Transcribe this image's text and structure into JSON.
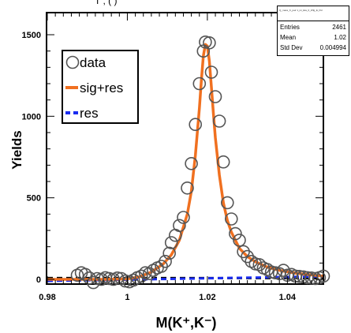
{
  "top_cut_text": "T                ,                (   )",
  "stats": {
    "title": "Q_mass_K_pair 1_ini_Eta_0_Wfg_E_Pol",
    "rows": [
      {
        "label": "Entries",
        "value": "2461"
      },
      {
        "label": "Mean",
        "value": "1.02"
      },
      {
        "label": "Std Dev",
        "value": "0.004994"
      }
    ]
  },
  "colors": {
    "data": "#555555",
    "fit": "#f07020",
    "res": "#1a2cf0",
    "baseline": "#000000"
  },
  "chart_data": {
    "type": "scatter",
    "xlabel": "M(K⁺,K⁻)",
    "ylabel": "Yields",
    "xlim": [
      0.98,
      1.05
    ],
    "ylim": [
      -40,
      1600
    ],
    "x_ticks": [
      0.98,
      1.0,
      1.02,
      1.04
    ],
    "x_tick_labels": [
      "0.98",
      "1",
      "1.02",
      "1.04"
    ],
    "y_ticks": [
      0,
      500,
      1000,
      1500
    ],
    "y_tick_labels": [
      "0",
      "500",
      "1000",
      "1500"
    ],
    "legend": {
      "position": "top-left",
      "entries": [
        {
          "label": "data",
          "marker": "open-circle"
        },
        {
          "label": "sig+res",
          "marker": "line",
          "color": "#f07020"
        },
        {
          "label": "res",
          "marker": "dashed-line",
          "color": "#1a2cf0"
        }
      ]
    },
    "series": [
      {
        "name": "data",
        "x": [
          0.9875,
          0.9885,
          0.9895,
          0.9905,
          0.9915,
          0.9925,
          0.9935,
          0.9945,
          0.9955,
          0.9965,
          0.9975,
          0.9985,
          0.9995,
          1.0005,
          1.0015,
          1.0025,
          1.0035,
          1.0045,
          1.0055,
          1.0065,
          1.0075,
          1.0085,
          1.0095,
          1.0105,
          1.011,
          1.012,
          1.013,
          1.014,
          1.015,
          1.016,
          1.017,
          1.018,
          1.019,
          1.0195,
          1.0205,
          1.021,
          1.022,
          1.023,
          1.024,
          1.025,
          1.026,
          1.027,
          1.028,
          1.029,
          1.03,
          1.031,
          1.032,
          1.033,
          1.034,
          1.035,
          1.036,
          1.037,
          1.038,
          1.039,
          1.04,
          1.041,
          1.042,
          1.043,
          1.044,
          1.045,
          1.046,
          1.047,
          1.048,
          1.049
        ],
        "y": [
          25,
          40,
          30,
          8,
          -20,
          5,
          0,
          10,
          5,
          0,
          8,
          5,
          -10,
          -15,
          -5,
          10,
          20,
          40,
          35,
          55,
          70,
          80,
          110,
          160,
          225,
          270,
          330,
          380,
          560,
          710,
          950,
          1200,
          1400,
          1455,
          1450,
          1270,
          1120,
          970,
          720,
          470,
          370,
          280,
          240,
          170,
          140,
          110,
          95,
          90,
          70,
          60,
          45,
          40,
          35,
          55,
          25,
          30,
          20,
          18,
          15,
          10,
          8,
          5,
          10,
          20
        ]
      },
      {
        "name": "sig+res",
        "x": [
          0.98,
          0.985,
          0.99,
          0.995,
          1.0,
          1.003,
          1.006,
          1.009,
          1.011,
          1.013,
          1.015,
          1.016,
          1.017,
          1.018,
          1.0185,
          1.019,
          1.0195,
          1.02,
          1.0205,
          1.021,
          1.0215,
          1.022,
          1.023,
          1.024,
          1.025,
          1.026,
          1.028,
          1.03,
          1.032,
          1.035,
          1.038,
          1.042,
          1.046,
          1.05
        ],
        "y": [
          0,
          0,
          0,
          0,
          3,
          15,
          45,
          95,
          150,
          240,
          400,
          540,
          760,
          1050,
          1220,
          1370,
          1440,
          1430,
          1340,
          1180,
          1020,
          870,
          640,
          470,
          360,
          290,
          190,
          140,
          108,
          75,
          55,
          38,
          27,
          20
        ]
      },
      {
        "name": "res",
        "x": [
          0.98,
          1.05
        ],
        "y": [
          -10,
          18
        ]
      },
      {
        "name": "baseline",
        "x": [
          0.98,
          1.05
        ],
        "y": [
          8,
          8
        ]
      }
    ]
  }
}
